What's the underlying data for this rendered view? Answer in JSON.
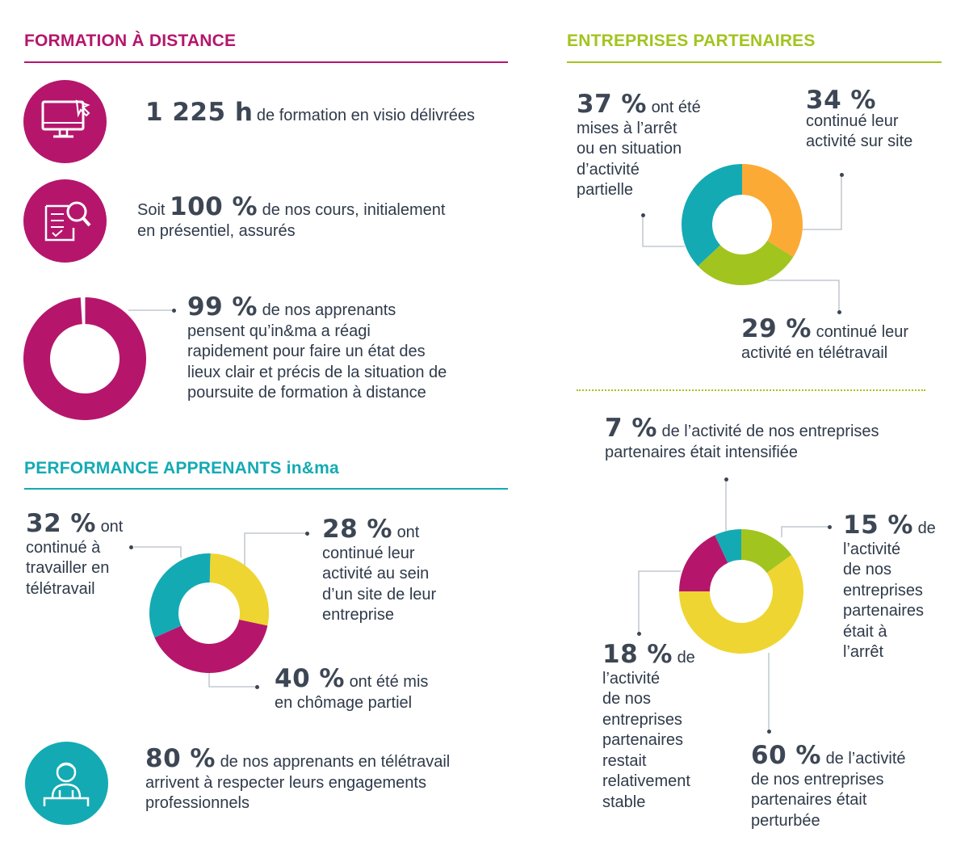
{
  "colors": {
    "magenta": "#b5166c",
    "teal": "#14aab4",
    "lime": "#a2c41f",
    "orange": "#fbaa35",
    "yellow": "#efd531",
    "text": "#2f3a4a"
  },
  "formation": {
    "title": "FORMATION À DISTANCE",
    "hours_value": "1 225 h",
    "hours_text": "de formation en visio délivrées",
    "courses_prefix": "Soit",
    "courses_value": "100 %",
    "courses_text1": "de nos cours, initialement",
    "courses_text2": "en présentiel, assurés",
    "react_value": "99  %",
    "react_l1": "de nos apprenants",
    "react_l2": "pensent qu’in&ma a réagi",
    "react_l3": "rapidement pour faire un état des",
    "react_l4": "lieux clair et précis de la situation de",
    "react_l5": "poursuite de formation à distance",
    "icons": [
      "monitor-cursor-icon",
      "document-magnifier-icon"
    ]
  },
  "performance": {
    "title": "PERFORMANCE APPRENANTS in&ma",
    "tele_value": "32 %",
    "tele_l1": "ont",
    "tele_l2": "continué à",
    "tele_l3": "travailler en",
    "tele_l4": "télétravail",
    "site_value": "28 %",
    "site_l1": "ont",
    "site_l2": "continué leur",
    "site_l3": "activité au sein",
    "site_l4": "d’un site de leur",
    "site_l5": "entreprise",
    "chom_value": "40 %",
    "chom_l1": "ont été mis",
    "chom_l2": "en chômage partiel",
    "eng_value": "80 %",
    "eng_l1": "de nos apprenants en télétravail",
    "eng_l2": "arrivent à respecter leurs engagements",
    "eng_l3": "professionnels",
    "icon": "person-at-desk-icon"
  },
  "entreprises": {
    "title": "ENTREPRISES PARTENAIRES",
    "arret_value": "37 %",
    "arret_l1": "ont été",
    "arret_l2": "mises à l’arrêt",
    "arret_l3": "ou en situation",
    "arret_l4": "d’activité",
    "arret_l5": "partielle",
    "site_value": "34 %",
    "site_l1": "continué leur",
    "site_l2": "activité sur site",
    "tele_value": "29 %",
    "tele_l1": "continué  leur",
    "tele_l2": "activité en télétravail",
    "int_value": "7 %",
    "int_l1": "de l’activité de nos entreprises",
    "int_l2": "partenaires était intensifiée",
    "arr15_value": "15 %",
    "arr15_l1": "de",
    "arr15_l2": "l’activité",
    "arr15_l3": "de nos",
    "arr15_l4": "entreprises",
    "arr15_l5": "partenaires",
    "arr15_l6": "était à",
    "arr15_l7": "l’arrêt",
    "stab_value": "18 %",
    "stab_l1": "de",
    "stab_l2": "l’activité",
    "stab_l3": "de nos",
    "stab_l4": "entreprises",
    "stab_l5": "partenaires",
    "stab_l6": "restait",
    "stab_l7": "relativement",
    "stab_l8": "stable",
    "pert_value": "60 %",
    "pert_l1": "de l’activité",
    "pert_l2": "de nos entreprises",
    "pert_l3": "partenaires était",
    "pert_l4": "perturbée"
  },
  "chart_data": [
    {
      "type": "pie",
      "id": "formation-donut",
      "labels": [
        "in&ma a réagi rapidement",
        "autres"
      ],
      "values": [
        99,
        1
      ],
      "colors": [
        "#b5166c",
        "#ffffff"
      ]
    },
    {
      "type": "pie",
      "id": "apprenants-donut",
      "labels": [
        "ont été mis en chômage partiel",
        "ont continué à travailler en télétravail",
        "ont continué leur activité au sein d’un site de leur entreprise"
      ],
      "values": [
        40,
        32,
        28
      ],
      "colors": [
        "#b5166c",
        "#14aab4",
        "#efd531"
      ]
    },
    {
      "type": "pie",
      "id": "entreprises-donut-1",
      "labels": [
        "continué leur activité sur site",
        "continué leur activité en télétravail",
        "mises à l’arrêt ou en situation d’activité partielle"
      ],
      "values": [
        34,
        29,
        37
      ],
      "colors": [
        "#fbaa35",
        "#a2c41f",
        "#14aab4"
      ]
    },
    {
      "type": "pie",
      "id": "entreprises-donut-2",
      "labels": [
        "était à l’arrêt",
        "était perturbée",
        "restait relativement stable",
        "était intensifiée"
      ],
      "values": [
        15,
        60,
        18,
        7
      ],
      "colors": [
        "#a2c41f",
        "#efd531",
        "#b5166c",
        "#14aab4"
      ]
    }
  ]
}
